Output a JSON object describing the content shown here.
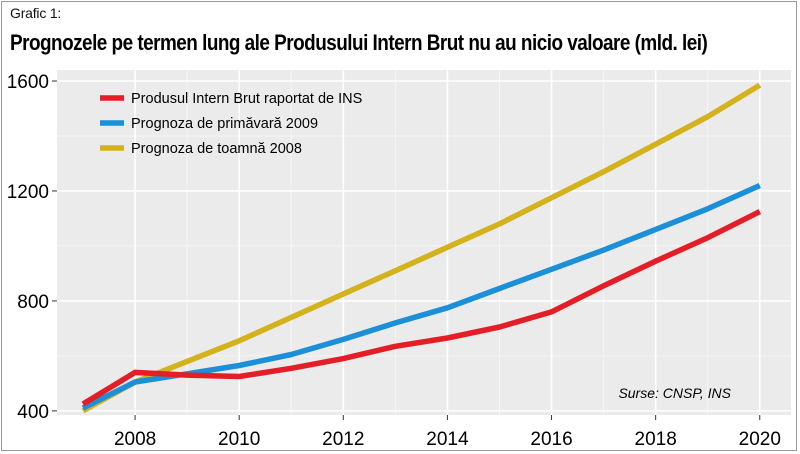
{
  "figure": {
    "label": "Grafic 1:",
    "title": "Prognozele pe termen lung ale Produsului Intern Brut nu au nicio valoare (mld. lei)"
  },
  "source_note": "Surse: CNSP, INS",
  "chart_data": {
    "type": "line",
    "title": "Prognozele pe termen lung ale Produsului Intern Brut nu au nicio valoare (mld. lei)",
    "xlabel": "",
    "ylabel": "",
    "x": [
      2007,
      2008,
      2009,
      2010,
      2011,
      2012,
      2013,
      2014,
      2015,
      2016,
      2017,
      2018,
      2019,
      2020
    ],
    "xlim": [
      2006.5,
      2020.6
    ],
    "ylim": [
      385,
      1640
    ],
    "xticks": [
      2008,
      2010,
      2012,
      2014,
      2016,
      2018,
      2020
    ],
    "yticks": [
      400,
      800,
      1200,
      1600
    ],
    "grid": true,
    "legend_position": "top-left",
    "series": [
      {
        "name": "Produsul Intern Brut raportat de INS",
        "color": "#e31e26",
        "values": [
          425,
          540,
          530,
          525,
          555,
          590,
          635,
          665,
          705,
          760,
          855,
          945,
          1030,
          1125
        ]
      },
      {
        "name": "Prognoza de primăvară 2009",
        "color": "#1b8fd8",
        "values": [
          410,
          505,
          535,
          565,
          605,
          660,
          720,
          775,
          845,
          915,
          985,
          1060,
          1135,
          1220
        ]
      },
      {
        "name": "Prognoza de toamnă 2008",
        "color": "#d4b21c",
        "values": [
          400,
          505,
          580,
          655,
          740,
          825,
          910,
          995,
          1080,
          1175,
          1270,
          1370,
          1470,
          1585
        ]
      }
    ]
  }
}
